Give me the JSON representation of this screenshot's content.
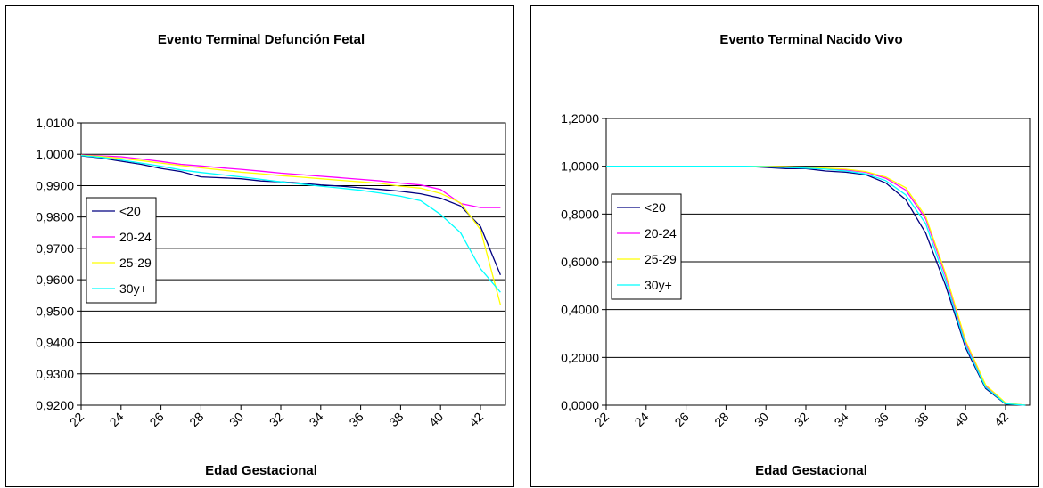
{
  "chart_data": [
    {
      "type": "line",
      "title": "Evento Terminal Defunción Fetal",
      "xlabel": "Edad Gestacional",
      "ylabel": "",
      "ylim": [
        0.92,
        1.01
      ],
      "y_ticks": [
        "0,9200",
        "0,9300",
        "0,9400",
        "0,9500",
        "0,9600",
        "0,9700",
        "0,9800",
        "0,9900",
        "1,0000",
        "1,0100"
      ],
      "x": [
        22,
        23,
        24,
        25,
        26,
        27,
        28,
        29,
        30,
        31,
        32,
        33,
        34,
        35,
        36,
        37,
        38,
        39,
        40,
        41,
        42,
        43
      ],
      "x_ticks": [
        "22",
        "24",
        "26",
        "28",
        "30",
        "32",
        "34",
        "36",
        "38",
        "40",
        "42"
      ],
      "grid": true,
      "legend_position": "left",
      "series": [
        {
          "name": "<20",
          "color": "#000080",
          "values": [
            0.9995,
            0.9988,
            0.9978,
            0.9968,
            0.9955,
            0.9945,
            0.9928,
            0.9925,
            0.9922,
            0.9915,
            0.9912,
            0.9908,
            0.9902,
            0.9898,
            0.9893,
            0.9888,
            0.9882,
            0.9874,
            0.986,
            0.9835,
            0.977,
            0.9615
          ]
        },
        {
          "name": "20-24",
          "color": "#ff00ff",
          "values": [
            0.9998,
            0.9995,
            0.9992,
            0.9985,
            0.9977,
            0.9968,
            0.9963,
            0.9957,
            0.9952,
            0.9946,
            0.994,
            0.9935,
            0.993,
            0.9925,
            0.992,
            0.9915,
            0.9908,
            0.9902,
            0.9888,
            0.9843,
            0.983,
            0.983
          ]
        },
        {
          "name": "25-29",
          "color": "#ffff00",
          "values": [
            0.9997,
            0.9993,
            0.9987,
            0.998,
            0.9972,
            0.9964,
            0.9957,
            0.995,
            0.9943,
            0.9938,
            0.9932,
            0.9927,
            0.9922,
            0.9917,
            0.9912,
            0.9907,
            0.9898,
            0.9892,
            0.9875,
            0.9845,
            0.976,
            0.952
          ]
        },
        {
          "name": "30y+",
          "color": "#00ffff",
          "values": [
            0.9996,
            0.999,
            0.9982,
            0.9972,
            0.9962,
            0.995,
            0.9942,
            0.9935,
            0.9928,
            0.992,
            0.9912,
            0.9905,
            0.9898,
            0.9892,
            0.9885,
            0.9876,
            0.9866,
            0.9852,
            0.9808,
            0.975,
            0.9635,
            0.956
          ]
        }
      ]
    },
    {
      "type": "line",
      "title": "Evento Terminal Nacido Vivo",
      "xlabel": "Edad Gestacional",
      "ylabel": "",
      "ylim": [
        0.0,
        1.2
      ],
      "y_ticks": [
        "0,0000",
        "0,2000",
        "0,4000",
        "0,6000",
        "0,8000",
        "1,0000",
        "1,2000"
      ],
      "x": [
        22,
        23,
        24,
        25,
        26,
        27,
        28,
        29,
        30,
        31,
        32,
        33,
        34,
        35,
        36,
        37,
        38,
        39,
        40,
        41,
        42,
        43
      ],
      "x_ticks": [
        "22",
        "24",
        "26",
        "28",
        "30",
        "32",
        "34",
        "36",
        "38",
        "40",
        "42"
      ],
      "grid": true,
      "legend_position": "left",
      "series": [
        {
          "name": "<20",
          "color": "#000080",
          "values": [
            1.0,
            1.0,
            1.0,
            1.0,
            1.0,
            1.0,
            1.0,
            1.0,
            0.995,
            0.99,
            0.99,
            0.98,
            0.975,
            0.965,
            0.93,
            0.86,
            0.72,
            0.5,
            0.24,
            0.07,
            0.005,
            0.0
          ]
        },
        {
          "name": "20-24",
          "color": "#ff00ff",
          "values": [
            1.0,
            1.0,
            1.0,
            1.0,
            1.0,
            1.0,
            1.0,
            1.0,
            1.0,
            0.995,
            0.995,
            0.99,
            0.985,
            0.975,
            0.95,
            0.9,
            0.78,
            0.54,
            0.26,
            0.08,
            0.008,
            0.0
          ]
        },
        {
          "name": "25-29",
          "color": "#ffff00",
          "values": [
            1.0,
            1.0,
            1.0,
            1.0,
            1.0,
            1.0,
            1.0,
            1.0,
            1.0,
            0.998,
            0.996,
            0.992,
            0.988,
            0.978,
            0.955,
            0.91,
            0.79,
            0.55,
            0.27,
            0.085,
            0.01,
            0.0
          ]
        },
        {
          "name": "30y+",
          "color": "#00ffff",
          "values": [
            1.0,
            1.0,
            1.0,
            1.0,
            1.0,
            1.0,
            1.0,
            1.0,
            0.998,
            0.995,
            0.992,
            0.988,
            0.98,
            0.968,
            0.94,
            0.88,
            0.76,
            0.52,
            0.25,
            0.075,
            0.006,
            0.0
          ]
        }
      ]
    }
  ]
}
